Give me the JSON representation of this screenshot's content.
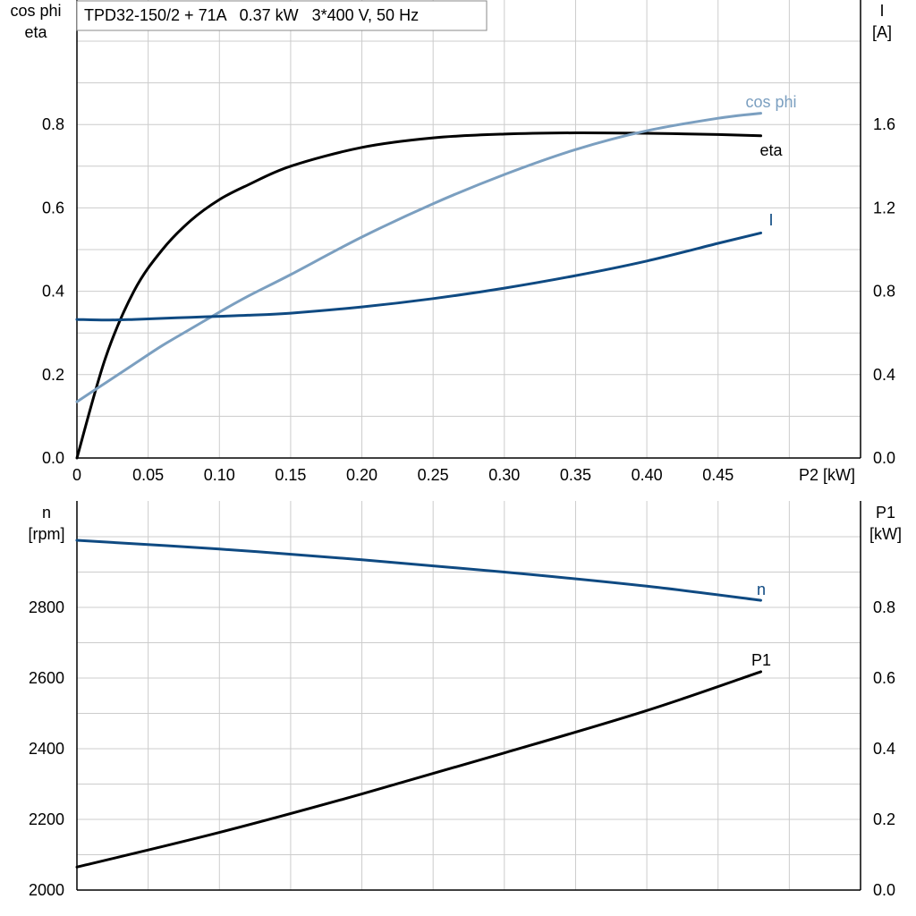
{
  "title": "TPD32-150/2 + 71A   0.37 kW   3*400 V, 50 Hz",
  "colors": {
    "eta": "#000000",
    "cos_phi": "#7b9fc0",
    "current": "#0f4a82",
    "speed": "#0f4a82",
    "p1": "#000000",
    "grid": "#cccccc"
  },
  "chart_data": [
    {
      "type": "line",
      "name": "efficiency-chart",
      "x": [
        0,
        0.02,
        0.04,
        0.06,
        0.08,
        0.1,
        0.12,
        0.15,
        0.2,
        0.25,
        0.3,
        0.35,
        0.4,
        0.45,
        0.48
      ],
      "xlim": [
        0,
        0.55
      ],
      "xticks": [
        "0",
        "0.05",
        "0.10",
        "0.15",
        "0.20",
        "0.25",
        "0.30",
        "0.35",
        "0.40",
        "0.45"
      ],
      "xtick_values": [
        0,
        0.05,
        0.1,
        0.15,
        0.2,
        0.25,
        0.3,
        0.35,
        0.4,
        0.45
      ],
      "xlabel": "P2 [kW]",
      "ylabel_left": [
        "cos phi",
        "eta"
      ],
      "ylim_left": [
        0,
        1.0
      ],
      "yticks_left": [
        "0.0",
        "0.2",
        "0.4",
        "0.6",
        "0.8"
      ],
      "ytick_values_left": [
        0,
        0.2,
        0.4,
        0.6,
        0.8
      ],
      "ylabel_right": [
        "I",
        "[A]"
      ],
      "ylim_right": [
        0,
        2.0
      ],
      "yticks_right": [
        "0.0",
        "0.4",
        "0.8",
        "1.2",
        "1.6"
      ],
      "ytick_values_right": [
        0,
        0.4,
        0.8,
        1.2,
        1.6
      ],
      "grid": true,
      "series": [
        {
          "name": "eta",
          "axis": "left",
          "values": [
            0,
            0.24,
            0.4,
            0.5,
            0.57,
            0.62,
            0.655,
            0.7,
            0.745,
            0.768,
            0.777,
            0.78,
            0.779,
            0.776,
            0.773
          ]
        },
        {
          "name": "cos phi",
          "axis": "left",
          "values": [
            0.135,
            0.18,
            0.225,
            0.27,
            0.31,
            0.35,
            0.388,
            0.44,
            0.53,
            0.61,
            0.68,
            0.74,
            0.785,
            0.815,
            0.827
          ]
        },
        {
          "name": "I",
          "axis": "right",
          "values": [
            0.665,
            0.662,
            0.665,
            0.67,
            0.675,
            0.68,
            0.685,
            0.695,
            0.725,
            0.765,
            0.815,
            0.875,
            0.945,
            1.03,
            1.08
          ]
        }
      ]
    },
    {
      "type": "line",
      "name": "speed-power-chart",
      "x": [
        0,
        0.1,
        0.2,
        0.3,
        0.4,
        0.48
      ],
      "xlim": [
        0,
        0.55
      ],
      "xtick_values": [
        0,
        0.05,
        0.1,
        0.15,
        0.2,
        0.25,
        0.3,
        0.35,
        0.4,
        0.45,
        0.5
      ],
      "ylabel_left": [
        "n",
        "[rpm]"
      ],
      "ylim_left": [
        2000,
        3000
      ],
      "yticks_left": [
        "2000",
        "2200",
        "2400",
        "2600",
        "2800"
      ],
      "ytick_values_left": [
        2000,
        2200,
        2400,
        2600,
        2800
      ],
      "ylabel_right": [
        "P1",
        "[kW]"
      ],
      "ylim_right": [
        0,
        1.0
      ],
      "yticks_right": [
        "0.0",
        "0.2",
        "0.4",
        "0.6",
        "0.8"
      ],
      "ytick_values_right": [
        0,
        0.2,
        0.4,
        0.6,
        0.8
      ],
      "grid": true,
      "series": [
        {
          "name": "n",
          "axis": "left",
          "values": [
            2990,
            2965,
            2935,
            2900,
            2860,
            2820
          ]
        },
        {
          "name": "P1",
          "axis": "right",
          "values": [
            0.065,
            0.163,
            0.272,
            0.388,
            0.508,
            0.618
          ]
        }
      ]
    }
  ]
}
